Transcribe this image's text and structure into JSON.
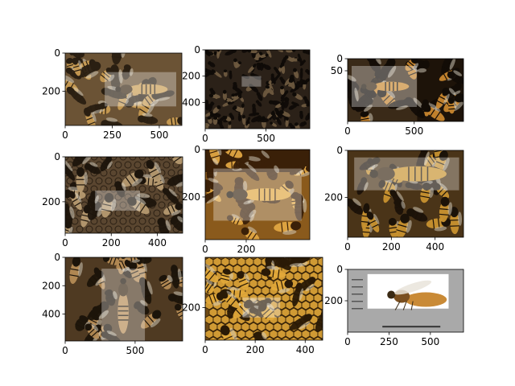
{
  "chart_data": [
    {
      "type": "image",
      "image_extent": {
        "width": 620,
        "height": 380
      },
      "highlight_box": {
        "x": [
          210,
          590
        ],
        "y": [
          100,
          280
        ]
      },
      "scene": "bees-cluster",
      "colors": {
        "base": "#6b5335",
        "accent": "#c89b52",
        "dark": "#2a1f12"
      },
      "xticks": [
        {
          "value": 0,
          "label": "0"
        },
        {
          "value": 250,
          "label": "250"
        },
        {
          "value": 500,
          "label": "500"
        }
      ],
      "yticks": [
        {
          "value": 0,
          "label": "0"
        },
        {
          "value": 200,
          "label": "200"
        }
      ]
    },
    {
      "type": "image",
      "image_extent": {
        "width": 860,
        "height": 600
      },
      "highlight_box": {
        "x": [
          300,
          460
        ],
        "y": [
          200,
          280
        ]
      },
      "scene": "dark-swarm",
      "colors": {
        "base": "#2b2118",
        "accent": "#6e5a3f",
        "dark": "#0f0b07"
      },
      "xticks": [
        {
          "value": 0,
          "label": "0"
        },
        {
          "value": 500,
          "label": "500"
        }
      ],
      "yticks": [
        {
          "value": 0,
          "label": "0"
        },
        {
          "value": 200,
          "label": "200"
        },
        {
          "value": 400,
          "label": "400"
        }
      ]
    },
    {
      "type": "image",
      "image_extent": {
        "width": 870,
        "height": 260
      },
      "highlight_box": {
        "x": [
          30,
          520
        ],
        "y": [
          30,
          200
        ]
      },
      "scene": "split-two-bees",
      "colors": {
        "base": "#3a2a18",
        "accent": "#c8862e",
        "dark": "#120c06"
      },
      "xticks": [
        {
          "value": 0,
          "label": "0"
        },
        {
          "value": 500,
          "label": "500"
        }
      ],
      "yticks": [
        {
          "value": 0,
          "label": "0"
        },
        {
          "value": 50,
          "label": "50"
        }
      ]
    },
    {
      "type": "image",
      "image_extent": {
        "width": 510,
        "height": 340
      },
      "highlight_box": {
        "x": [
          130,
          325
        ],
        "y": [
          150,
          240
        ]
      },
      "scene": "bees-on-comb",
      "colors": {
        "base": "#5a4630",
        "accent": "#b69a70",
        "dark": "#1d150c"
      },
      "xticks": [
        {
          "value": 0,
          "label": "0"
        },
        {
          "value": 200,
          "label": "200"
        },
        {
          "value": 400,
          "label": "400"
        }
      ],
      "yticks": [
        {
          "value": 0,
          "label": "0"
        },
        {
          "value": 200,
          "label": "200"
        }
      ]
    },
    {
      "type": "image",
      "image_extent": {
        "width": 510,
        "height": 380
      },
      "highlight_box": {
        "x": [
          40,
          470
        ],
        "y": [
          80,
          300
        ]
      },
      "scene": "queen-amber",
      "colors": {
        "base": "#8a5a1c",
        "accent": "#e0a742",
        "dark": "#3a2008"
      },
      "xticks": [
        {
          "value": 0,
          "label": "0"
        },
        {
          "value": 200,
          "label": "200"
        }
      ],
      "yticks": [
        {
          "value": 0,
          "label": "0"
        },
        {
          "value": 200,
          "label": "200"
        }
      ]
    },
    {
      "type": "image",
      "image_extent": {
        "width": 530,
        "height": 370
      },
      "highlight_box": {
        "x": [
          30,
          510
        ],
        "y": [
          30,
          170
        ]
      },
      "scene": "queen-top-workers",
      "colors": {
        "base": "#4a3418",
        "accent": "#c8922f",
        "dark": "#1b1208"
      },
      "xticks": [
        {
          "value": 0,
          "label": "0"
        },
        {
          "value": 200,
          "label": "200"
        },
        {
          "value": 400,
          "label": "400"
        }
      ],
      "yticks": [
        {
          "value": 0,
          "label": "0"
        },
        {
          "value": 200,
          "label": "200"
        }
      ]
    },
    {
      "type": "image",
      "image_extent": {
        "width": 840,
        "height": 590
      },
      "highlight_box": {
        "x": [
          260,
          570
        ],
        "y": [
          80,
          590
        ]
      },
      "scene": "queen-vertical",
      "colors": {
        "base": "#4f3a22",
        "accent": "#b58b55",
        "dark": "#1c140a"
      },
      "xticks": [
        {
          "value": 0,
          "label": "0"
        },
        {
          "value": 500,
          "label": "500"
        }
      ],
      "yticks": [
        {
          "value": 0,
          "label": "0"
        },
        {
          "value": 200,
          "label": "200"
        },
        {
          "value": 400,
          "label": "400"
        }
      ]
    },
    {
      "type": "image",
      "image_extent": {
        "width": 470,
        "height": 330
      },
      "highlight_box": {
        "x": [
          150,
          300
        ],
        "y": [
          160,
          240
        ]
      },
      "scene": "honeycomb-bees",
      "colors": {
        "base": "#6e4a16",
        "accent": "#e2a93a",
        "dark": "#2a1a06"
      },
      "xticks": [
        {
          "value": 0,
          "label": "0"
        },
        {
          "value": 200,
          "label": "200"
        },
        {
          "value": 400,
          "label": "400"
        }
      ],
      "yticks": [
        {
          "value": 200,
          "label": "200"
        }
      ]
    },
    {
      "type": "image",
      "image_extent": {
        "width": 700,
        "height": 400
      },
      "highlight_box": {
        "x": [
          120,
          610
        ],
        "y": [
          30,
          250
        ]
      },
      "scene": "specimen-plate",
      "colors": {
        "base": "#a9a9a9",
        "accent": "#c98a36",
        "dark": "#ffffff"
      },
      "xticks": [
        {
          "value": 0,
          "label": "0"
        },
        {
          "value": 250,
          "label": "250"
        },
        {
          "value": 500,
          "label": "500"
        }
      ],
      "yticks": [
        {
          "value": 0,
          "label": "0"
        },
        {
          "value": 200,
          "label": "200"
        }
      ]
    }
  ]
}
